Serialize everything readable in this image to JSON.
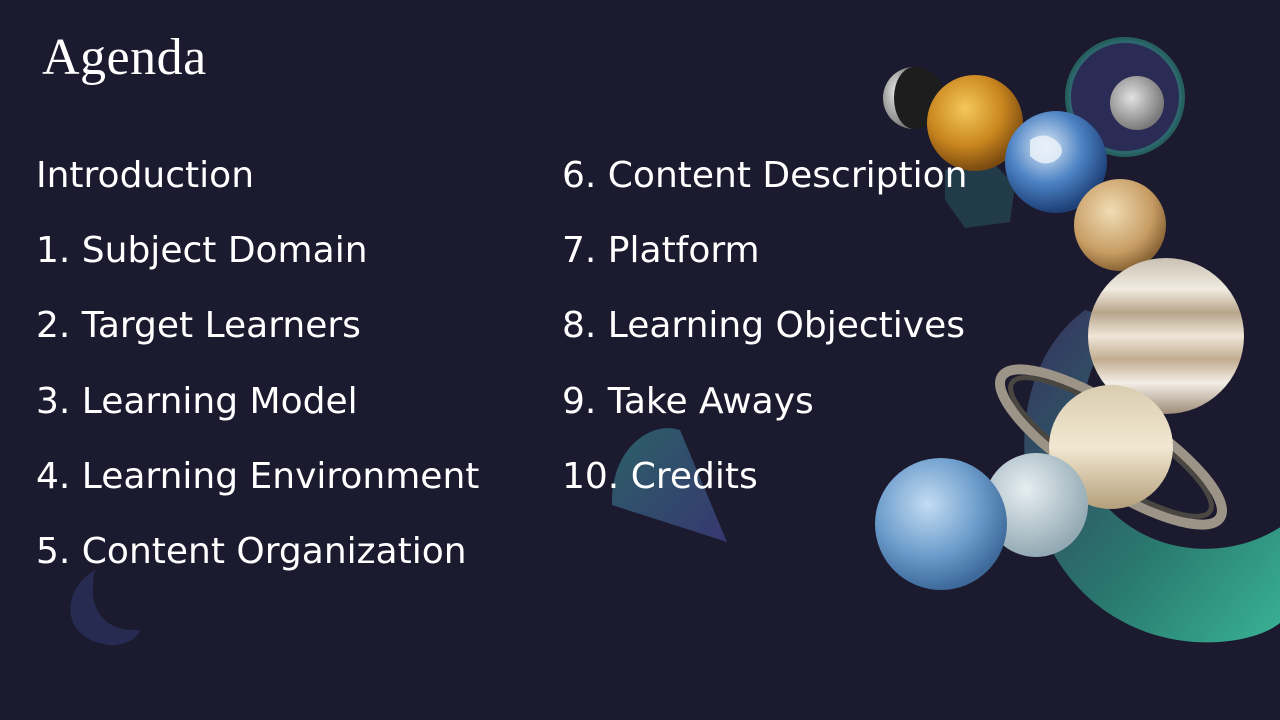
{
  "slide": {
    "title": "Agenda",
    "left_column": [
      "Introduction",
      "1. Subject Domain",
      "2. Target Learners",
      "3. Learning Model",
      "4. Learning Environment",
      "5. Content Organization"
    ],
    "right_column": [
      "6. Content Description",
      "7. Platform",
      "8. Learning Objectives",
      "9. Take Aways",
      "10. Credits"
    ]
  },
  "colors": {
    "background": "#1b1a2e",
    "text": "#ffffff",
    "accent_teal": "#3fd0a8",
    "accent_purple": "#3a3566"
  },
  "decorations": [
    "moon-icon",
    "venus-icon",
    "earth-icon",
    "mars-icon",
    "jupiter-icon",
    "saturn-icon",
    "uranus-icon",
    "neptune-icon",
    "cone-shape",
    "ring-shape"
  ]
}
